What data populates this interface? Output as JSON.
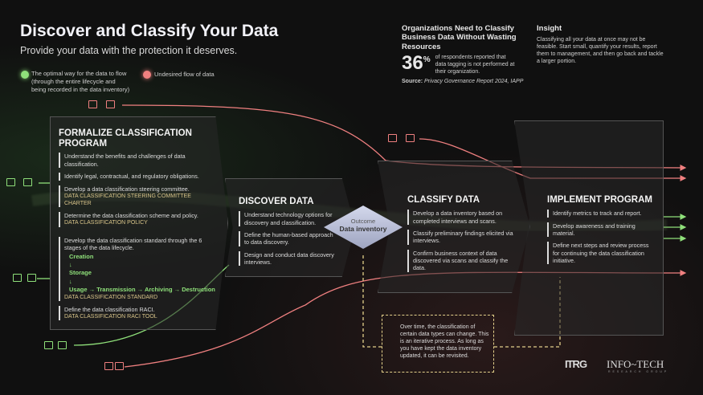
{
  "header": {
    "title": "Discover and Classify Your Data",
    "subtitle": "Provide your data with the protection it deserves."
  },
  "legend": {
    "optimal": "The optimal way for the data to flow (through the entire lifecycle and being recorded in the data inventory)",
    "undesired": "Undesired flow of data",
    "colors": {
      "optimal": "#8fe07a",
      "undesired": "#f08080"
    }
  },
  "stat": {
    "heading": "Organizations Need to Classify Business Data Without Wasting Resources",
    "number": "36",
    "unit": "%",
    "text": "of respondents reported that data tagging is not performed at their organization.",
    "source_label": "Source:",
    "source": "Privacy Governance Report 2024, IAPP"
  },
  "insight": {
    "title": "Insight",
    "text": "Classifying all your data at once may not be feasible. Start small, quantify your results, report them to management, and then go back and tackle a larger portion."
  },
  "formalize": {
    "title": "FORMALIZE CLASSIFICATION PROGRAM",
    "items": [
      "Understand the benefits and challenges of data classification.",
      "Identify legal, contractual, and regulatory obligations.",
      "Develop a data classification steering committee.",
      "Determine the data classification scheme and policy.",
      "Develop the data classification standard through the 6 stages of the data lifecycle.",
      "Define the data classification RACI."
    ],
    "tools": [
      "DATA CLASSIFICATION STEERING COMMITTEE CHARTER",
      "DATA CLASSIFICATION POLICY",
      "DATA CLASSIFICATION STANDARD",
      "DATA CLASSIFICATION RACI TOOL"
    ],
    "lifecycle": [
      "Creation",
      "Storage",
      "Usage",
      "Transmission",
      "Archiving",
      "Destruction"
    ]
  },
  "discover": {
    "title": "DISCOVER DATA",
    "items": [
      "Understand technology options for discovery and classification.",
      "Define the human-based approach to data discovery.",
      "Design and conduct data discovery interviews."
    ]
  },
  "outcome": {
    "label": "Outcome",
    "value": "Data inventory"
  },
  "classify": {
    "title": "CLASSIFY DATA",
    "items": [
      "Develop a data inventory based on completed interviews and scans.",
      "Classify preliminary findings elicited via interviews.",
      "Confirm business context of data discovered via scans and classify the data."
    ]
  },
  "implement": {
    "title": "IMPLEMENT PROGRAM",
    "items": [
      "Identify metrics to track and report.",
      "Develop awareness and training material.",
      "Define next steps and review process for continuing the data classification initiative."
    ]
  },
  "note": "Over time, the classification of certain data types can change. This is an iterative process. As long as you have kept the data inventory updated, it can be revisited.",
  "logos": {
    "itrg": "ITRG",
    "infotech": "INFO~TECH",
    "infotech_sub": "RESEARCH GROUP"
  }
}
